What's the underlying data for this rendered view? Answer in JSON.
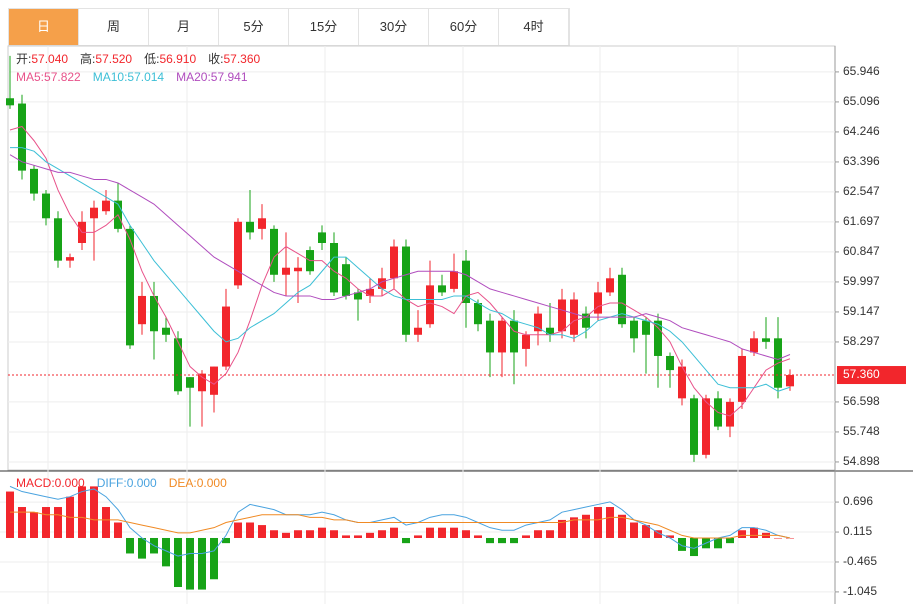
{
  "tabs": [
    "日",
    "周",
    "月",
    "5分",
    "15分",
    "30分",
    "60分",
    "4时"
  ],
  "selected_tab": 0,
  "chart_data": {
    "type": "candlestick",
    "up_color": "#f2262c",
    "down_color": "#17a317",
    "info": [
      {
        "name": "开:",
        "value": "57.040"
      },
      {
        "name": "高:",
        "value": "57.520"
      },
      {
        "name": "低:",
        "value": "56.910"
      },
      {
        "name": "收:",
        "value": "57.360"
      }
    ],
    "open": [
      65.2,
      65.05,
      63.2,
      62.5,
      61.8,
      60.6,
      61.1,
      61.8,
      62.0,
      62.3,
      61.5,
      58.8,
      59.6,
      58.7,
      58.4,
      57.3,
      56.9,
      56.8,
      57.6,
      59.9,
      61.7,
      61.5,
      61.5,
      60.2,
      60.3,
      60.9,
      61.4,
      61.1,
      60.5,
      59.7,
      59.6,
      59.8,
      60.1,
      61.0,
      58.5,
      58.8,
      59.9,
      59.8,
      60.6,
      59.4,
      58.9,
      58.0,
      58.9,
      58.1,
      58.6,
      58.7,
      58.6,
      58.5,
      59.1,
      59.1,
      59.7,
      60.2,
      58.9,
      58.9,
      58.9,
      57.9,
      56.7,
      56.7,
      55.1,
      56.7,
      55.9,
      56.6,
      58.0,
      58.4,
      58.4,
      57.04
    ],
    "high": [
      66.4,
      65.3,
      63.3,
      62.6,
      62.0,
      60.8,
      62.0,
      62.3,
      62.6,
      62.8,
      61.6,
      60.0,
      60.0,
      59.0,
      58.6,
      57.3,
      57.5,
      57.6,
      59.8,
      61.8,
      62.6,
      62.2,
      61.6,
      61.4,
      60.7,
      61.0,
      61.6,
      61.4,
      60.7,
      59.8,
      60.1,
      60.4,
      61.2,
      61.2,
      59.2,
      60.6,
      60.2,
      60.8,
      60.9,
      59.5,
      59.1,
      59.0,
      59.2,
      58.6,
      59.3,
      59.4,
      59.8,
      59.7,
      59.3,
      60.0,
      60.4,
      60.4,
      59.0,
      59.0,
      59.1,
      58.0,
      57.8,
      56.8,
      56.8,
      56.9,
      56.7,
      58.1,
      58.6,
      59.0,
      59.0,
      57.52
    ],
    "low": [
      64.9,
      62.9,
      62.3,
      61.6,
      60.4,
      60.4,
      60.9,
      60.6,
      61.9,
      61.4,
      58.1,
      58.5,
      57.8,
      58.3,
      56.8,
      55.9,
      55.9,
      56.3,
      57.5,
      59.8,
      61.2,
      61.2,
      60.0,
      59.6,
      59.4,
      60.2,
      60.9,
      59.6,
      59.5,
      58.9,
      59.4,
      59.6,
      59.8,
      58.3,
      58.3,
      58.7,
      59.6,
      59.7,
      58.7,
      58.6,
      57.3,
      57.3,
      57.1,
      57.6,
      58.2,
      58.3,
      58.4,
      58.3,
      58.4,
      58.9,
      59.6,
      58.7,
      58.0,
      57.4,
      57.0,
      57.0,
      56.5,
      54.9,
      55.0,
      55.8,
      55.6,
      56.4,
      57.9,
      58.1,
      56.7,
      56.91
    ],
    "close": [
      65.0,
      63.15,
      62.5,
      61.8,
      60.6,
      60.7,
      61.7,
      62.1,
      62.3,
      61.5,
      58.2,
      59.6,
      58.6,
      58.5,
      56.9,
      57.0,
      57.4,
      57.6,
      59.3,
      61.7,
      61.4,
      61.8,
      60.2,
      60.4,
      60.4,
      60.3,
      61.1,
      59.7,
      59.6,
      59.5,
      59.8,
      60.1,
      61.0,
      58.5,
      58.7,
      59.9,
      59.7,
      60.3,
      59.4,
      58.8,
      58.0,
      58.9,
      58.0,
      58.5,
      59.1,
      58.5,
      59.5,
      59.5,
      58.7,
      59.7,
      60.1,
      58.8,
      58.4,
      58.5,
      57.9,
      57.5,
      57.6,
      55.1,
      56.7,
      55.9,
      56.6,
      57.9,
      58.4,
      58.3,
      57.0,
      57.36
    ],
    "series": [
      {
        "name": "MA5:",
        "value_label": "57.822",
        "color": "#e8528a",
        "values": [
          64.3,
          64.4,
          64.0,
          63.5,
          62.6,
          61.9,
          61.4,
          61.4,
          61.6,
          61.9,
          61.2,
          60.3,
          59.6,
          59.0,
          58.3,
          57.6,
          57.3,
          57.1,
          57.4,
          58.0,
          58.9,
          59.9,
          60.7,
          61.0,
          60.8,
          60.6,
          60.6,
          60.3,
          60.1,
          59.8,
          59.6,
          59.6,
          59.8,
          59.5,
          59.3,
          59.4,
          59.3,
          59.1,
          59.6,
          59.7,
          59.4,
          59.0,
          58.6,
          58.5,
          58.5,
          58.5,
          58.6,
          58.9,
          59.0,
          59.3,
          59.4,
          59.4,
          59.2,
          59.0,
          58.7,
          58.3,
          57.6,
          57.0,
          56.6,
          56.3,
          56.2,
          56.5,
          57.0,
          57.5,
          57.7,
          57.822
        ]
      },
      {
        "name": "MA10:",
        "value_label": "57.014",
        "color": "#3cbfd6",
        "values": [
          63.8,
          63.8,
          63.7,
          63.4,
          63.2,
          63.0,
          62.8,
          62.6,
          62.4,
          62.2,
          61.6,
          61.1,
          60.6,
          60.2,
          59.8,
          59.4,
          59.0,
          58.6,
          58.3,
          58.4,
          58.7,
          58.9,
          59.1,
          59.4,
          59.7,
          59.9,
          60.3,
          60.7,
          60.7,
          60.4,
          60.1,
          59.8,
          59.6,
          59.5,
          59.5,
          59.5,
          59.5,
          59.6,
          59.6,
          59.4,
          59.2,
          59.1,
          58.9,
          58.8,
          58.7,
          58.5,
          58.5,
          58.4,
          58.6,
          58.9,
          59.0,
          59.1,
          59.0,
          58.9,
          58.8,
          58.6,
          58.3,
          57.9,
          57.5,
          57.1,
          57.0,
          57.0,
          57.0,
          57.1,
          56.9,
          57.014
        ]
      },
      {
        "name": "MA20:",
        "value_label": "57.941",
        "color": "#b04dbe",
        "values": [
          63.6,
          63.4,
          63.3,
          63.2,
          63.1,
          63.1,
          63.0,
          62.9,
          62.9,
          62.8,
          62.6,
          62.4,
          62.2,
          61.9,
          61.6,
          61.3,
          61.0,
          60.7,
          60.5,
          60.3,
          60.1,
          59.9,
          59.7,
          59.6,
          59.6,
          59.6,
          59.5,
          59.5,
          59.6,
          59.7,
          59.8,
          60.0,
          60.1,
          60.2,
          60.3,
          60.3,
          60.3,
          60.3,
          60.2,
          60.0,
          59.8,
          59.7,
          59.6,
          59.5,
          59.4,
          59.3,
          59.2,
          59.1,
          59.0,
          59.0,
          59.0,
          59.0,
          59.0,
          59.1,
          59.0,
          58.9,
          58.7,
          58.6,
          58.5,
          58.4,
          58.3,
          58.1,
          58.0,
          57.9,
          57.8,
          57.941
        ]
      }
    ],
    "last_price": {
      "value": 57.36,
      "label": "57.360"
    },
    "ylim": [
      54.67,
      66.68
    ],
    "yticks": [
      65.946,
      65.096,
      64.246,
      63.396,
      62.547,
      61.697,
      60.847,
      59.997,
      59.147,
      58.297,
      56.598,
      55.748,
      54.898
    ],
    "grid": true,
    "macd": {
      "type": "bar",
      "legend": [
        {
          "name": "MACD:",
          "value": "0.000",
          "color": "#f2262c"
        },
        {
          "name": "DIFF:",
          "value": "0.000",
          "color": "#4aa3df"
        },
        {
          "name": "DEA:",
          "value": "0.000",
          "color": "#f08a24"
        }
      ],
      "values": [
        0.9,
        0.6,
        0.5,
        0.6,
        0.6,
        0.8,
        1.0,
        1.0,
        0.6,
        0.3,
        -0.3,
        -0.4,
        -0.3,
        -0.55,
        -0.95,
        -1.0,
        -1.0,
        -0.8,
        -0.1,
        0.3,
        0.3,
        0.25,
        0.15,
        0.1,
        0.15,
        0.15,
        0.2,
        0.15,
        0.05,
        0.05,
        0.1,
        0.15,
        0.2,
        -0.1,
        0.05,
        0.2,
        0.2,
        0.2,
        0.15,
        0.05,
        -0.1,
        -0.1,
        -0.1,
        0.05,
        0.15,
        0.15,
        0.35,
        0.4,
        0.45,
        0.6,
        0.6,
        0.45,
        0.3,
        0.25,
        0.15,
        0.05,
        -0.25,
        -0.35,
        -0.2,
        -0.2,
        -0.1,
        0.15,
        0.2,
        0.1,
        0.0,
        0.0
      ],
      "lines": [
        {
          "color": "#4aa3df",
          "values": [
            1.0,
            0.9,
            0.85,
            0.8,
            0.75,
            0.8,
            0.9,
            0.95,
            0.8,
            0.55,
            0.2,
            0.0,
            -0.15,
            -0.25,
            -0.35,
            -0.3,
            -0.3,
            -0.25,
            0.05,
            0.5,
            0.65,
            0.6,
            0.55,
            0.45,
            0.45,
            0.45,
            0.5,
            0.45,
            0.35,
            0.3,
            0.3,
            0.35,
            0.4,
            0.25,
            0.3,
            0.4,
            0.45,
            0.45,
            0.4,
            0.3,
            0.2,
            0.15,
            0.15,
            0.25,
            0.3,
            0.35,
            0.5,
            0.55,
            0.6,
            0.65,
            0.7,
            0.55,
            0.35,
            0.25,
            0.1,
            0.0,
            -0.15,
            -0.2,
            -0.1,
            0.0,
            0.05,
            0.2,
            0.2,
            0.15,
            0.05,
            0.0
          ]
        },
        {
          "color": "#f08a24",
          "values": [
            0.5,
            0.5,
            0.5,
            0.45,
            0.45,
            0.4,
            0.4,
            0.35,
            0.35,
            0.35,
            0.3,
            0.25,
            0.2,
            0.15,
            0.1,
            0.1,
            0.15,
            0.2,
            0.3,
            0.35,
            0.4,
            0.45,
            0.45,
            0.45,
            0.45,
            0.4,
            0.4,
            0.35,
            0.35,
            0.3,
            0.3,
            0.3,
            0.3,
            0.3,
            0.3,
            0.3,
            0.3,
            0.3,
            0.3,
            0.3,
            0.3,
            0.3,
            0.3,
            0.3,
            0.3,
            0.3,
            0.3,
            0.35,
            0.35,
            0.35,
            0.4,
            0.4,
            0.35,
            0.3,
            0.25,
            0.15,
            0.05,
            0.0,
            0.0,
            0.0,
            0.0,
            0.05,
            0.05,
            0.05,
            0.05,
            0.0
          ]
        }
      ],
      "ylim": [
        -1.26,
        1.24
      ],
      "yticks": [
        0.696,
        0.115,
        -0.465,
        -1.045
      ]
    }
  }
}
